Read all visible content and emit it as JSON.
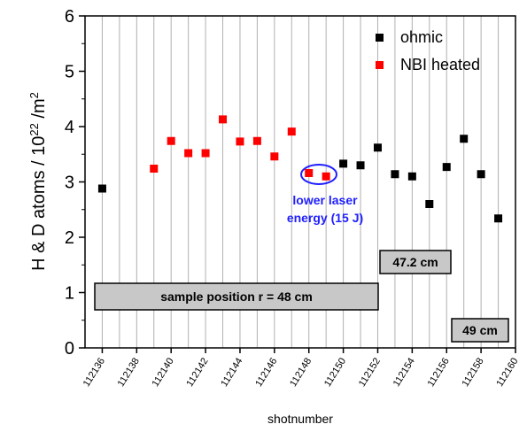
{
  "chart_data": {
    "type": "scatter",
    "xlabel": "shotnumber",
    "ylabel": "H & D atoms / 10^22 /m^2",
    "ylim": [
      0,
      6
    ],
    "xlim": [
      112135,
      112160
    ],
    "yticks": [
      0,
      1,
      2,
      3,
      4,
      5,
      6
    ],
    "xticks": [
      "112136",
      "112138",
      "112140",
      "112142",
      "112144",
      "112146",
      "112148",
      "112150",
      "112152",
      "112154",
      "112156",
      "112158",
      "112160"
    ],
    "grid": "vertical",
    "legend_position": "top-right",
    "series": [
      {
        "name": "ohmic",
        "color": "#000000",
        "marker": "square",
        "x": [
          112136,
          112150,
          112151,
          112152,
          112153,
          112154,
          112155,
          112156,
          112157,
          112158,
          112159
        ],
        "y": [
          2.88,
          3.33,
          3.3,
          3.62,
          3.14,
          3.1,
          2.6,
          3.27,
          3.78,
          3.14,
          2.34
        ]
      },
      {
        "name": "NBI heated",
        "color": "#ff0000",
        "marker": "square",
        "x": [
          112139,
          112140,
          112141,
          112142,
          112143,
          112144,
          112145,
          112146,
          112147,
          112148,
          112149
        ],
        "y": [
          3.24,
          3.74,
          3.52,
          3.52,
          4.13,
          3.73,
          3.74,
          3.46,
          3.91,
          3.16,
          3.1
        ]
      }
    ],
    "annotations": {
      "laser_line1": "lower laser",
      "laser_line2": "energy (15 J)",
      "box_sample": "sample position r = 48 cm",
      "box_47": "47.2 cm",
      "box_49": "49 cm"
    }
  }
}
